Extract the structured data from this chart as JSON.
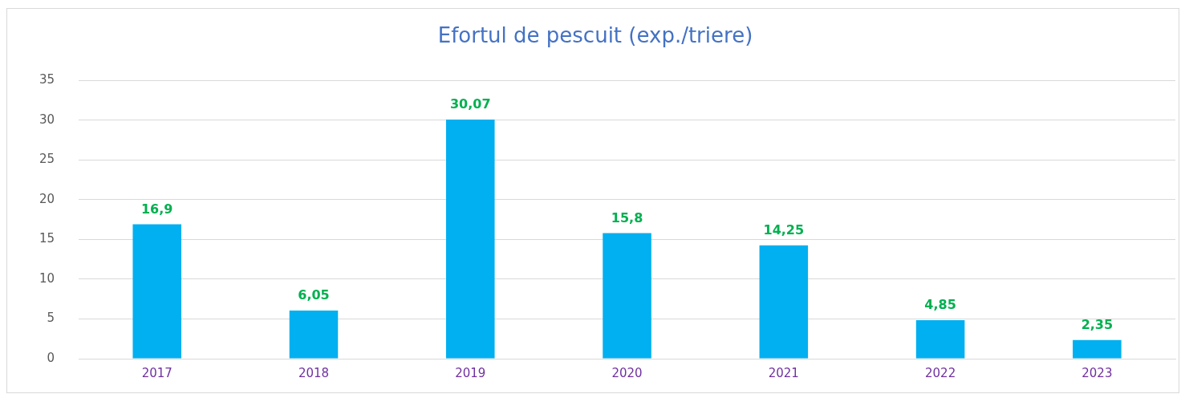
{
  "chart_data": {
    "type": "bar",
    "title": "Efortul de pescuit (exp./triere)",
    "categories": [
      "2017",
      "2018",
      "2019",
      "2020",
      "2021",
      "2022",
      "2023"
    ],
    "values": [
      16.9,
      6.05,
      30.07,
      15.8,
      14.25,
      4.85,
      2.35
    ],
    "value_labels": [
      "16,9",
      "6,05",
      "30,07",
      "15,8",
      "14,25",
      "4,85",
      "2,35"
    ],
    "color": "#00b0f0",
    "ylim": [
      0,
      35
    ],
    "yticks": [
      0,
      5,
      10,
      15,
      20,
      25,
      30,
      35
    ],
    "grid": "y",
    "legend": false
  }
}
